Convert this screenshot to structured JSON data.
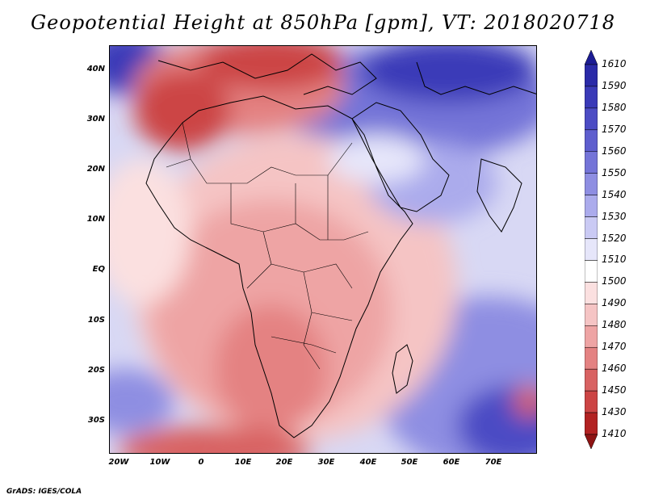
{
  "title": "Geopotential Height at 850hPa [gpm], VT: 2018020718",
  "map": {
    "lat_labels": [
      "40N",
      "30N",
      "20N",
      "10N",
      "EQ",
      "10S",
      "20S",
      "30S"
    ],
    "lon_labels": [
      "20W",
      "10W",
      "0",
      "10E",
      "20E",
      "30E",
      "40E",
      "50E",
      "60E",
      "70E"
    ]
  },
  "colorbar": {
    "levels": [
      "1610",
      "1590",
      "1580",
      "1570",
      "1560",
      "1550",
      "1540",
      "1530",
      "1520",
      "1510",
      "1500",
      "1490",
      "1480",
      "1470",
      "1460",
      "1450",
      "1430",
      "1410"
    ],
    "colors": [
      "#1c1c94",
      "#2a2aa8",
      "#3a3ab8",
      "#4c4cc4",
      "#5e5ece",
      "#7474d8",
      "#8e8ee2",
      "#ababec",
      "#cacaf4",
      "#e6e6fa",
      "#ffffff",
      "#fbe0e0",
      "#f5c4c4",
      "#eea4a4",
      "#e48282",
      "#d86262",
      "#cc4444",
      "#b22222",
      "#8e1414"
    ]
  },
  "credit": "GrADS: IGES/COLA"
}
